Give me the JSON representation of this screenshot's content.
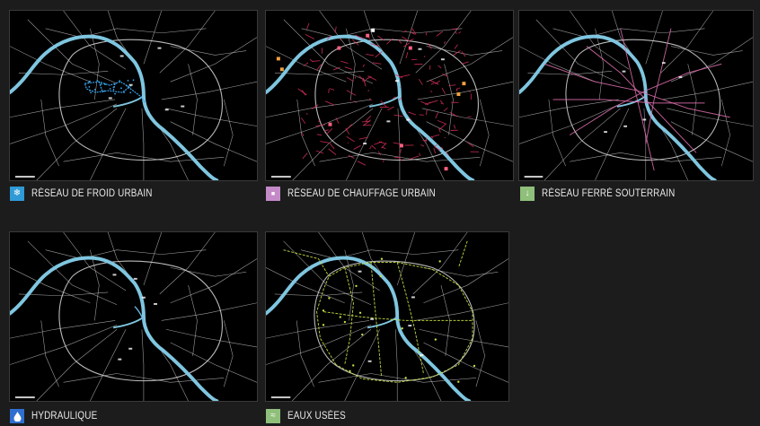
{
  "panels": [
    {
      "id": "froid",
      "caption": "RÉSEAU DE FROID URBAIN",
      "icon": "snowflake-drop-icon",
      "icon_glyph": "❄",
      "swatch_color": "#2f9ad6",
      "network_color": "#3aa6ef",
      "network": "froid"
    },
    {
      "id": "chauffage",
      "caption": "RÉSEAU DE CHAUFFAGE URBAIN",
      "icon": "heat-icon",
      "icon_glyph": "■",
      "swatch_color": "#c48ac8",
      "network_color": "#d6305a",
      "network": "chauffage"
    },
    {
      "id": "ferre",
      "caption": "RÉSEAU FERRÉ SOUTERRAIN",
      "icon": "rail-icon",
      "icon_glyph": "↓",
      "swatch_color": "#8fbf7a",
      "network_color": "#e070b0",
      "network": "ferre"
    },
    {
      "id": "hydraulique",
      "caption": "HYDRAULIQUE",
      "icon": "water-drop-icon",
      "icon_glyph": "💧",
      "swatch_color": "#2f6fd0",
      "network_color": "#6fb9e6",
      "network": "hydraulique"
    },
    {
      "id": "eaux",
      "caption": "EAUX USÉES",
      "icon": "sewer-icon",
      "icon_glyph": "≈",
      "swatch_color": "#8fbf7a",
      "network_color": "#c9e040",
      "network": "eaux"
    }
  ],
  "colors": {
    "background": "#1c1c1c",
    "map_background": "#000000",
    "river": "#7fc6e0",
    "streets": "#cfcfcf"
  }
}
